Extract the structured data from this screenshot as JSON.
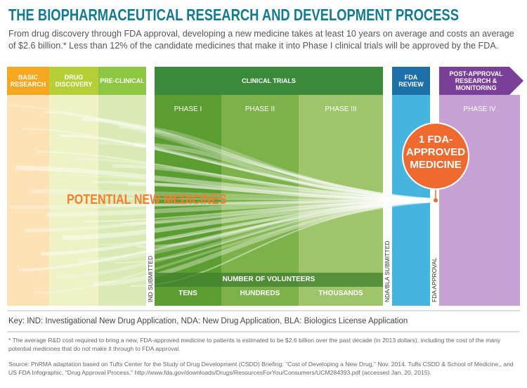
{
  "header": {
    "title": "THE BIOPHARMACEUTICAL RESEARCH AND DEVELOPMENT PROCESS",
    "subtitle": "From drug discovery through FDA approval, developing a new medicine takes at least 10 years on average and costs an average of $2.6 billion.* Less than 12% of the candidate medicines that make it into Phase I clinical trials will be approved by the FDA."
  },
  "stages": [
    "BASIC RESEARCH",
    "DRUG DISCOVERY",
    "PRE-CLINICAL",
    "CLINICAL TRIALS",
    "FDA REVIEW",
    "POST-APPROVAL RESEARCH & MONITORING"
  ],
  "phases": [
    "PHASE I",
    "PHASE II",
    "PHASE III",
    "PHASE IV"
  ],
  "milestones": [
    "IND SUBMITTED",
    "NDA/BLA SUBMITTED",
    "FDA APPROVAL"
  ],
  "funnel_label": "POTENTIAL NEW MEDICINES",
  "outcome": [
    "1 FDA-",
    "APPROVED",
    "MEDICINE"
  ],
  "volunteers": {
    "title": "NUMBER OF VOLUNTEERS",
    "levels": [
      "TENS",
      "HUNDREDS",
      "THOUSANDS"
    ]
  },
  "key": "Key: IND: Investigational New Drug Application, NDA: New Drug Application, BLA: Biologics License Application",
  "footnote": "* The average R&D cost required to bring a new, FDA-approved medicine to patients is estimated to be $2.6 billion over the past decade (in 2013 dollars), including the cost of the many potential medicines that do not make it through to FDA approval.",
  "source": "Source: PhRMA adaptation based on Tufts Center for the Study of Drug Development (CSDD) Briefing: \"Cost of Developing a New Drug,\" Nov. 2014. Tufts CSDD & School of Medicine., and US FDA Infographic, \"Drug Approval Process,\" http://www.fda.gov/downloads/Drugs/ResourcesForYou/Consumers/UCM284393.pdf (accessed Jan. 20, 2015)."
}
